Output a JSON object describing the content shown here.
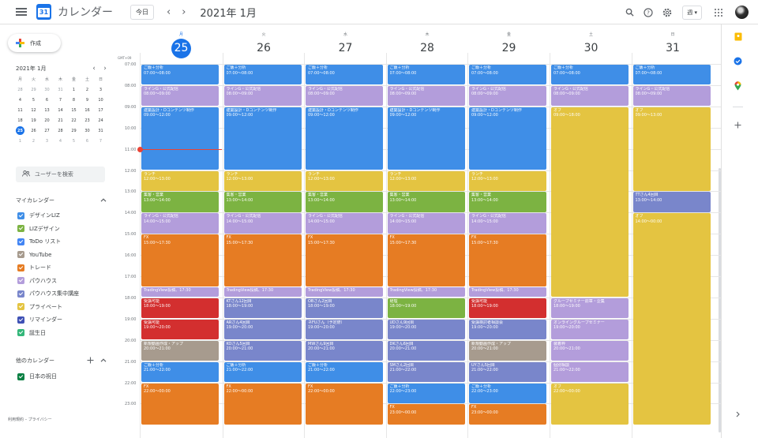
{
  "topbar": {
    "app_name": "カレンダー",
    "logo_day": "31",
    "today_button": "今日",
    "prev": "‹",
    "next": "›",
    "current_month": "2021年 1月",
    "view_select": "週 ▾"
  },
  "sidebar": {
    "create_label": "作成",
    "mini_calendar": {
      "title": "2021年 1月",
      "prev": "‹",
      "next": "›",
      "weekdays": [
        "月",
        "火",
        "水",
        "木",
        "金",
        "土",
        "日"
      ],
      "rows": [
        [
          "28",
          "29",
          "30",
          "31",
          "1",
          "2",
          "3"
        ],
        [
          "4",
          "5",
          "6",
          "7",
          "8",
          "9",
          "10"
        ],
        [
          "11",
          "12",
          "13",
          "14",
          "15",
          "16",
          "17"
        ],
        [
          "18",
          "19",
          "20",
          "21",
          "22",
          "23",
          "24"
        ],
        [
          "25",
          "26",
          "27",
          "28",
          "29",
          "30",
          "31"
        ],
        [
          "1",
          "2",
          "3",
          "4",
          "5",
          "6",
          "7"
        ]
      ],
      "selected": "25"
    },
    "people_search_placeholder": "ユーザーを検索",
    "my_calendars_title": "マイカレンダー",
    "my_calendars": [
      {
        "name": "デザインLIZ",
        "color": "#3f8ee7"
      },
      {
        "name": "LIZデザイン",
        "color": "#7cb342"
      },
      {
        "name": "ToDo リスト",
        "color": "#4285f4"
      },
      {
        "name": "YouTube",
        "color": "#a79b8e"
      },
      {
        "name": "トレード",
        "color": "#e67c23"
      },
      {
        "name": "パウハウス",
        "color": "#b39ddb"
      },
      {
        "name": "パウハウス集中講座",
        "color": "#7986cb"
      },
      {
        "name": "プライベート",
        "color": "#e4c441"
      },
      {
        "name": "リマインダー",
        "color": "#3f51b5"
      },
      {
        "name": "誕生日",
        "color": "#33b679"
      }
    ],
    "other_calendars_title": "他のカレンダー",
    "other_calendars": [
      {
        "name": "日本の祝日",
        "color": "#0b8043"
      }
    ],
    "footer": "利用規約 – プライバシー"
  },
  "week": {
    "timezone": "GMT+09",
    "days": [
      {
        "weekday": "月",
        "date": "25",
        "today": true
      },
      {
        "weekday": "火",
        "date": "26"
      },
      {
        "weekday": "水",
        "date": "27"
      },
      {
        "weekday": "木",
        "date": "28"
      },
      {
        "weekday": "金",
        "date": "29"
      },
      {
        "weekday": "土",
        "date": "30"
      },
      {
        "weekday": "日",
        "date": "31"
      }
    ],
    "hours": [
      "07:00",
      "08:00",
      "09:00",
      "10:00",
      "11:00",
      "12:00",
      "13:00",
      "14:00",
      "15:00",
      "16:00",
      "17:00",
      "18:00",
      "19:00",
      "20:00",
      "21:00",
      "22:00",
      "23:00"
    ],
    "first_hour": 7,
    "now": {
      "day": 0,
      "hour": 11.0
    }
  },
  "events": [
    {
      "day": 0,
      "title": "ご飯＋分析",
      "time": "07:00〜08:00",
      "start": 7,
      "end": 8,
      "color": "#3f8ee7"
    },
    {
      "day": 0,
      "title": "ラインG・公式配信",
      "time": "08:00〜09:00",
      "start": 8,
      "end": 9,
      "color": "#b39ddb"
    },
    {
      "day": 0,
      "title": "建築設計・Dコンテンツ制作",
      "time": "09:00〜12:00",
      "start": 9,
      "end": 12,
      "color": "#3f8ee7"
    },
    {
      "day": 0,
      "title": "ランチ",
      "time": "12:00〜13:00",
      "start": 12,
      "end": 13,
      "color": "#e4c441"
    },
    {
      "day": 0,
      "title": "集客・営業",
      "time": "13:00〜14:00",
      "start": 13,
      "end": 14,
      "color": "#7cb342"
    },
    {
      "day": 0,
      "title": "ラインG・公式配信",
      "time": "14:00〜15:00",
      "start": 14,
      "end": 15,
      "color": "#b39ddb"
    },
    {
      "day": 0,
      "title": "FX",
      "time": "15:00〜17:30",
      "start": 15,
      "end": 17.5,
      "color": "#e67c23"
    },
    {
      "day": 0,
      "title": "TradingView投稿、17:30",
      "time": "",
      "start": 17.5,
      "end": 18,
      "color": "#b39ddb"
    },
    {
      "day": 0,
      "title": "受講可能",
      "time": "18:00〜19:00",
      "start": 18,
      "end": 19,
      "color": "#d32f2f"
    },
    {
      "day": 0,
      "title": "受講可能",
      "time": "19:00〜20:00",
      "start": 19,
      "end": 20,
      "color": "#d32f2f"
    },
    {
      "day": 0,
      "title": "新規動画作成・アップ",
      "time": "20:00〜21:00",
      "start": 20,
      "end": 21,
      "color": "#a79b8e"
    },
    {
      "day": 0,
      "title": "ご飯＋分析",
      "time": "21:00〜22:00",
      "start": 21,
      "end": 22,
      "color": "#3f8ee7"
    },
    {
      "day": 0,
      "title": "FX",
      "time": "22:00〜00:00",
      "start": 22,
      "end": 24,
      "color": "#e67c23"
    },
    {
      "day": 1,
      "title": "ご飯＋分析",
      "time": "07:00〜08:00",
      "start": 7,
      "end": 8,
      "color": "#3f8ee7"
    },
    {
      "day": 1,
      "title": "ラインG・公式配信",
      "time": "08:00〜09:00",
      "start": 8,
      "end": 9,
      "color": "#b39ddb"
    },
    {
      "day": 1,
      "title": "建築設計・Dコンテンツ制作",
      "time": "09:00〜12:00",
      "start": 9,
      "end": 12,
      "color": "#3f8ee7"
    },
    {
      "day": 1,
      "title": "ランチ",
      "time": "12:00〜13:00",
      "start": 12,
      "end": 13,
      "color": "#e4c441"
    },
    {
      "day": 1,
      "title": "集客・営業",
      "time": "13:00〜14:00",
      "start": 13,
      "end": 14,
      "color": "#7cb342"
    },
    {
      "day": 1,
      "title": "ラインG・公式配信",
      "time": "14:00〜15:00",
      "start": 14,
      "end": 15,
      "color": "#b39ddb"
    },
    {
      "day": 1,
      "title": "FX",
      "time": "15:00〜17:30",
      "start": 15,
      "end": 17.5,
      "color": "#e67c23"
    },
    {
      "day": 1,
      "title": "TradingView投稿、17:30",
      "time": "",
      "start": 17.5,
      "end": 18,
      "color": "#b39ddb"
    },
    {
      "day": 1,
      "title": "KTさん12回目",
      "time": "18:00〜19:00",
      "start": 18,
      "end": 19,
      "color": "#7986cb"
    },
    {
      "day": 1,
      "title": "ARさん4回目",
      "time": "19:00〜20:00",
      "start": 19,
      "end": 20,
      "color": "#7986cb"
    },
    {
      "day": 1,
      "title": "KOさん5回目",
      "time": "20:00〜21:00",
      "start": 20,
      "end": 21,
      "color": "#7986cb"
    },
    {
      "day": 1,
      "title": "ご飯＋分析",
      "time": "21:00〜22:00",
      "start": 21,
      "end": 22,
      "color": "#3f8ee7"
    },
    {
      "day": 1,
      "title": "FX",
      "time": "22:00〜00:00",
      "start": 22,
      "end": 24,
      "color": "#e67c23"
    },
    {
      "day": 2,
      "title": "ご飯＋分析",
      "time": "07:00〜08:00",
      "start": 7,
      "end": 8,
      "color": "#3f8ee7"
    },
    {
      "day": 2,
      "title": "ラインG・公式配信",
      "time": "08:00〜09:00",
      "start": 8,
      "end": 9,
      "color": "#b39ddb"
    },
    {
      "day": 2,
      "title": "建築設計・Dコンテンツ制作",
      "time": "09:00〜12:00",
      "start": 9,
      "end": 12,
      "color": "#3f8ee7"
    },
    {
      "day": 2,
      "title": "ランチ",
      "time": "12:00〜13:00",
      "start": 12,
      "end": 13,
      "color": "#e4c441"
    },
    {
      "day": 2,
      "title": "集客・営業",
      "time": "13:00〜14:00",
      "start": 13,
      "end": 14,
      "color": "#7cb342"
    },
    {
      "day": 2,
      "title": "ラインG・公式配信",
      "time": "14:00〜15:00",
      "start": 14,
      "end": 15,
      "color": "#b39ddb"
    },
    {
      "day": 2,
      "title": "FX",
      "time": "15:00〜17:30",
      "start": 15,
      "end": 17.5,
      "color": "#e67c23"
    },
    {
      "day": 2,
      "title": "TradingView投稿、17:30",
      "time": "",
      "start": 17.5,
      "end": 18,
      "color": "#b39ddb"
    },
    {
      "day": 2,
      "title": "OBさん2回目",
      "time": "18:00〜19:00",
      "start": 18,
      "end": 19,
      "color": "#7986cb"
    },
    {
      "day": 2,
      "title": "ネFUさん（予定際）",
      "time": "19:00〜20:00",
      "start": 19,
      "end": 20,
      "color": "#7986cb"
    },
    {
      "day": 2,
      "title": "MWさん9回目",
      "time": "20:00〜21:00",
      "start": 20,
      "end": 21,
      "color": "#7986cb"
    },
    {
      "day": 2,
      "title": "ご飯＋分析",
      "time": "21:00〜22:00",
      "start": 21,
      "end": 22,
      "color": "#3f8ee7"
    },
    {
      "day": 2,
      "title": "FX",
      "time": "22:00〜00:00",
      "start": 22,
      "end": 24,
      "color": "#e67c23"
    },
    {
      "day": 3,
      "title": "ご飯＋分析",
      "time": "07:00〜08:00",
      "start": 7,
      "end": 8,
      "color": "#3f8ee7"
    },
    {
      "day": 3,
      "title": "ラインG・公式配信",
      "time": "08:00〜09:00",
      "start": 8,
      "end": 9,
      "color": "#b39ddb"
    },
    {
      "day": 3,
      "title": "建築設計・Dコンテンツ制作",
      "time": "09:00〜12:00",
      "start": 9,
      "end": 12,
      "color": "#3f8ee7"
    },
    {
      "day": 3,
      "title": "ランチ",
      "time": "12:00〜13:00",
      "start": 12,
      "end": 13,
      "color": "#e4c441"
    },
    {
      "day": 3,
      "title": "集客・営業",
      "time": "13:00〜14:00",
      "start": 13,
      "end": 14,
      "color": "#7cb342"
    },
    {
      "day": 3,
      "title": "ラインG・公式配信",
      "time": "14:00〜15:00",
      "start": 14,
      "end": 15,
      "color": "#b39ddb"
    },
    {
      "day": 3,
      "title": "FX",
      "time": "15:00〜17:30",
      "start": 15,
      "end": 17.5,
      "color": "#e67c23"
    },
    {
      "day": 3,
      "title": "TradingView投稿、17:30",
      "time": "",
      "start": 17.5,
      "end": 18,
      "color": "#b39ddb"
    },
    {
      "day": 3,
      "title": "経理",
      "time": "18:00〜19:00",
      "start": 18,
      "end": 19,
      "color": "#7cb342"
    },
    {
      "day": 3,
      "title": "UDさん9回目",
      "time": "19:00〜20:00",
      "start": 19,
      "end": 20,
      "color": "#7986cb"
    },
    {
      "day": 3,
      "title": "DKさん6回目",
      "time": "20:00〜21:00",
      "start": 20,
      "end": 21,
      "color": "#7986cb"
    },
    {
      "day": 3,
      "title": "SMさん2回目",
      "time": "21:00〜22:00",
      "start": 21,
      "end": 22,
      "color": "#7986cb"
    },
    {
      "day": 3,
      "title": "ご飯＋分析",
      "time": "22:00〜23:00",
      "start": 22,
      "end": 23,
      "color": "#3f8ee7"
    },
    {
      "day": 3,
      "title": "FX",
      "time": "23:00〜00:00",
      "start": 23,
      "end": 24,
      "color": "#e67c23"
    },
    {
      "day": 4,
      "title": "ご飯＋分析",
      "time": "07:00〜08:00",
      "start": 7,
      "end": 8,
      "color": "#3f8ee7"
    },
    {
      "day": 4,
      "title": "ラインG・公式配信",
      "time": "08:00〜09:00",
      "start": 8,
      "end": 9,
      "color": "#b39ddb"
    },
    {
      "day": 4,
      "title": "建築設計・Dコンテンツ制作",
      "time": "09:00〜12:00",
      "start": 9,
      "end": 12,
      "color": "#3f8ee7"
    },
    {
      "day": 4,
      "title": "ランチ",
      "time": "12:00〜13:00",
      "start": 12,
      "end": 13,
      "color": "#e4c441"
    },
    {
      "day": 4,
      "title": "集客・営業",
      "time": "13:00〜14:00",
      "start": 13,
      "end": 14,
      "color": "#7cb342"
    },
    {
      "day": 4,
      "title": "ラインG・公式配信",
      "time": "14:00〜15:00",
      "start": 14,
      "end": 15,
      "color": "#b39ddb"
    },
    {
      "day": 4,
      "title": "FX",
      "time": "15:00〜17:30",
      "start": 15,
      "end": 17.5,
      "color": "#e67c23"
    },
    {
      "day": 4,
      "title": "TradingView投稿、17:30",
      "time": "",
      "start": 17.5,
      "end": 18,
      "color": "#b39ddb"
    },
    {
      "day": 4,
      "title": "受講可能",
      "time": "18:00〜19:00",
      "start": 18,
      "end": 19,
      "color": "#d32f2f"
    },
    {
      "day": 4,
      "title": "受講検討者相談会",
      "time": "19:00〜20:00",
      "start": 19,
      "end": 20,
      "color": "#7986cb"
    },
    {
      "day": 4,
      "title": "新規動画作成・アップ",
      "time": "20:00〜21:00",
      "start": 20,
      "end": 21,
      "color": "#a79b8e"
    },
    {
      "day": 4,
      "title": "UYさん5回目",
      "time": "21:00〜22:00",
      "start": 21,
      "end": 22,
      "color": "#7986cb"
    },
    {
      "day": 4,
      "title": "ご飯＋分析",
      "time": "22:00〜23:00",
      "start": 22,
      "end": 23,
      "color": "#3f8ee7"
    },
    {
      "day": 4,
      "title": "FX",
      "time": "23:00〜00:00",
      "start": 23,
      "end": 24,
      "color": "#e67c23"
    },
    {
      "day": 5,
      "title": "ご飯＋分析",
      "time": "07:00〜08:00",
      "start": 7,
      "end": 8,
      "color": "#3f8ee7"
    },
    {
      "day": 5,
      "title": "ラインG・公式配信",
      "time": "08:00〜09:00",
      "start": 8,
      "end": 9,
      "color": "#b39ddb"
    },
    {
      "day": 5,
      "title": "オフ",
      "time": "09:00〜18:00",
      "start": 9,
      "end": 18,
      "color": "#e4c441"
    },
    {
      "day": 5,
      "title": "グループセミナー前章・企集",
      "time": "18:00〜19:00",
      "start": 18,
      "end": 19,
      "color": "#b39ddb"
    },
    {
      "day": 5,
      "title": "オンライングループセミナー",
      "time": "19:00〜20:00",
      "start": 19,
      "end": 20,
      "color": "#b39ddb"
    },
    {
      "day": 5,
      "title": "装着枠",
      "time": "20:00〜21:00",
      "start": 20,
      "end": 21,
      "color": "#b39ddb"
    },
    {
      "day": 5,
      "title": "個別相談",
      "time": "21:00〜22:00",
      "start": 21,
      "end": 22,
      "color": "#b39ddb"
    },
    {
      "day": 5,
      "title": "オフ",
      "time": "22:00〜00:00",
      "start": 22,
      "end": 24,
      "color": "#e4c441"
    },
    {
      "day": 6,
      "title": "ご飯＋分析",
      "time": "07:00〜08:00",
      "start": 7,
      "end": 8,
      "color": "#3f8ee7"
    },
    {
      "day": 6,
      "title": "ラインG・公式配信",
      "time": "08:00〜09:00",
      "start": 8,
      "end": 9,
      "color": "#b39ddb"
    },
    {
      "day": 6,
      "title": "オフ",
      "time": "09:00〜13:00",
      "start": 9,
      "end": 13,
      "color": "#e4c441"
    },
    {
      "day": 6,
      "title": "TTさん4回目",
      "time": "13:00〜14:00",
      "start": 13,
      "end": 14,
      "color": "#7986cb"
    },
    {
      "day": 6,
      "title": "オフ",
      "time": "14:00〜00:00",
      "start": 14,
      "end": 24,
      "color": "#e4c441"
    }
  ]
}
